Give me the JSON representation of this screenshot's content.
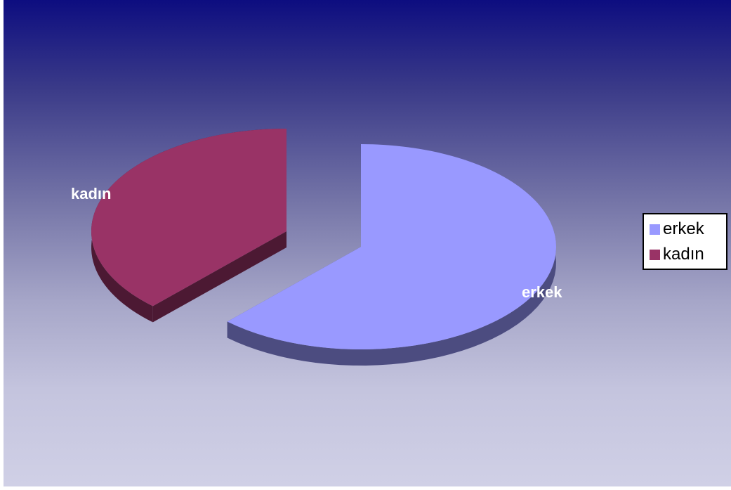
{
  "chart_data": {
    "type": "pie",
    "style": "3d-exploded",
    "title": "",
    "categories": [
      "erkek",
      "kadın"
    ],
    "values": [
      62,
      38
    ],
    "colors": [
      "#9999ff",
      "#993366"
    ],
    "side_colors": [
      "#4c4c80",
      "#4c1933"
    ],
    "data_labels": [
      "erkek",
      "kadın"
    ],
    "legend": {
      "position": "right",
      "entries": [
        "erkek",
        "kadın"
      ]
    }
  }
}
